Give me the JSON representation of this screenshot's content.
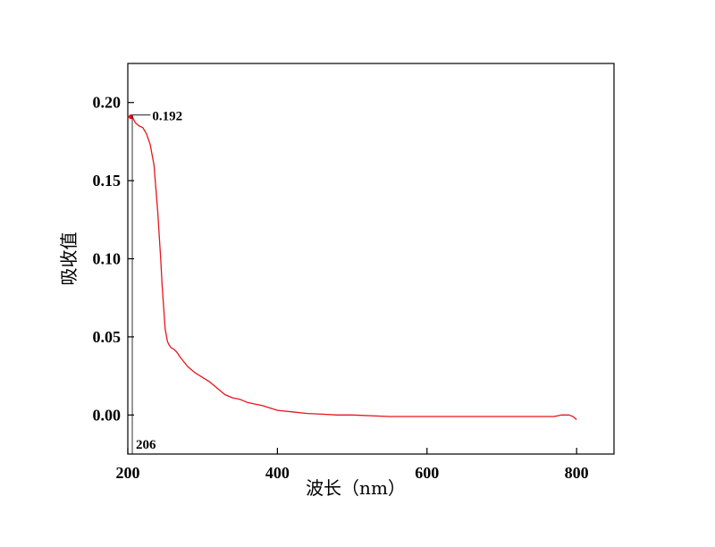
{
  "chart_data": {
    "type": "line",
    "title": "",
    "xlabel": "波长（nm）",
    "ylabel": "吸收值",
    "xlim": [
      200,
      850
    ],
    "ylim": [
      -0.025,
      0.225
    ],
    "x_ticks": [
      200,
      400,
      600,
      800
    ],
    "y_ticks": [
      0.0,
      0.05,
      0.1,
      0.15,
      0.2
    ],
    "x_tick_labels": [
      "200",
      "400",
      "600",
      "800"
    ],
    "y_tick_labels": [
      "0.00",
      "0.05",
      "0.10",
      "0.15",
      "0.20"
    ],
    "grid": false,
    "legend": "none",
    "series": [
      {
        "color": "#e8141c",
        "x": [
          200,
          204,
          206,
          210,
          215,
          220,
          225,
          230,
          235,
          240,
          244,
          246,
          248,
          250,
          253,
          255,
          258,
          262,
          266,
          270,
          280,
          290,
          300,
          310,
          320,
          330,
          340,
          350,
          360,
          370,
          380,
          400,
          420,
          440,
          460,
          480,
          500,
          550,
          600,
          650,
          700,
          720,
          740,
          760,
          770,
          780,
          790,
          795,
          800
        ],
        "y": [
          0.19,
          0.192,
          0.191,
          0.187,
          0.185,
          0.184,
          0.18,
          0.173,
          0.16,
          0.13,
          0.1,
          0.082,
          0.068,
          0.055,
          0.047,
          0.045,
          0.043,
          0.042,
          0.04,
          0.037,
          0.031,
          0.027,
          0.024,
          0.021,
          0.017,
          0.013,
          0.011,
          0.01,
          0.008,
          0.007,
          0.006,
          0.003,
          0.002,
          0.001,
          0.0005,
          0.0,
          0.0,
          -0.001,
          -0.001,
          -0.001,
          -0.001,
          -0.001,
          -0.001,
          -0.001,
          -0.001,
          0.0,
          0.0,
          -0.001,
          -0.003
        ]
      }
    ],
    "annotations": [
      {
        "text": "0.192",
        "x": 204,
        "y": 0.192
      },
      {
        "text": "206",
        "x": 206,
        "y": -0.025
      }
    ]
  }
}
